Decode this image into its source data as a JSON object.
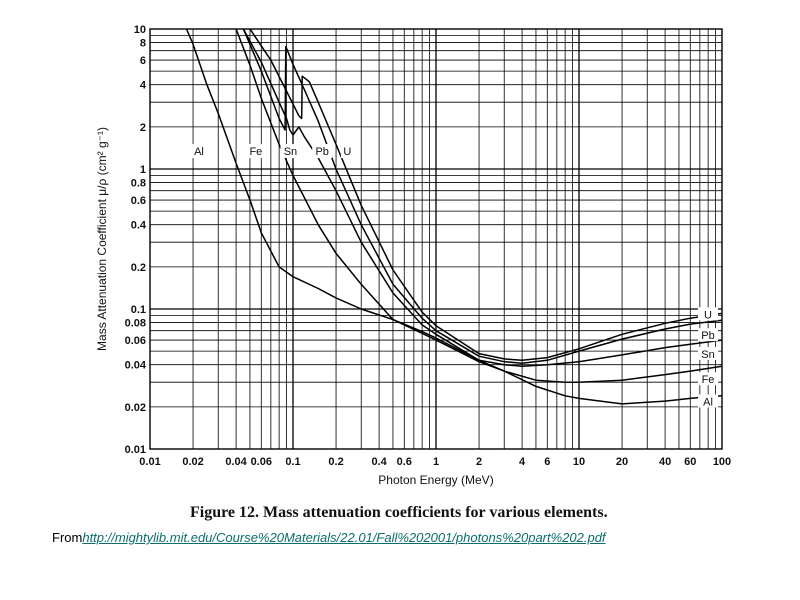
{
  "caption": "Figure 12.  Mass attenuation coefficients for various elements.",
  "source": {
    "prefix": "From",
    "url_text": "http://mightylib.mit.edu/Course%20Materials/22.01/Fall%202001/photons%20part%202.pdf"
  },
  "chart_data": {
    "type": "line",
    "xscale": "log",
    "yscale": "log",
    "xlim": [
      0.01,
      100
    ],
    "ylim": [
      0.01,
      10
    ],
    "xlabel": "Photon Energy (MeV)",
    "ylabel": "Mass Attenuation Coefficient μ/ρ (cm² g⁻¹)",
    "grid": true,
    "x_ticks": [
      {
        "v": 0.01,
        "label": "0.01"
      },
      {
        "v": 0.02,
        "label": "0.02"
      },
      {
        "v": 0.04,
        "label": "0.04"
      },
      {
        "v": 0.06,
        "label": "0.06"
      },
      {
        "v": 0.1,
        "label": "0.1"
      },
      {
        "v": 0.2,
        "label": "0.2"
      },
      {
        "v": 0.4,
        "label": "0.4"
      },
      {
        "v": 0.6,
        "label": "0.6"
      },
      {
        "v": 1,
        "label": "1"
      },
      {
        "v": 2,
        "label": "2"
      },
      {
        "v": 4,
        "label": "4"
      },
      {
        "v": 6,
        "label": "6"
      },
      {
        "v": 10,
        "label": "10"
      },
      {
        "v": 20,
        "label": "20"
      },
      {
        "v": 40,
        "label": "40"
      },
      {
        "v": 60,
        "label": "60"
      },
      {
        "v": 100,
        "label": "100"
      }
    ],
    "y_ticks": [
      {
        "v": 0.01,
        "label": "0.01"
      },
      {
        "v": 0.02,
        "label": "0.02"
      },
      {
        "v": 0.04,
        "label": "0.04"
      },
      {
        "v": 0.06,
        "label": "0.06"
      },
      {
        "v": 0.08,
        "label": "0.08"
      },
      {
        "v": 0.1,
        "label": "0.1"
      },
      {
        "v": 0.2,
        "label": "0.2"
      },
      {
        "v": 0.4,
        "label": "0.4"
      },
      {
        "v": 0.6,
        "label": "0.6"
      },
      {
        "v": 0.8,
        "label": "0.8"
      },
      {
        "v": 1,
        "label": "1"
      },
      {
        "v": 2,
        "label": "2"
      },
      {
        "v": 4,
        "label": "4"
      },
      {
        "v": 6,
        "label": "6"
      },
      {
        "v": 8,
        "label": "8"
      },
      {
        "v": 10,
        "label": "10"
      }
    ],
    "series": [
      {
        "name": "Al",
        "points": [
          [
            0.018,
            10
          ],
          [
            0.02,
            7.8
          ],
          [
            0.025,
            4.0
          ],
          [
            0.03,
            2.5
          ],
          [
            0.04,
            1.1
          ],
          [
            0.05,
            0.6
          ],
          [
            0.06,
            0.35
          ],
          [
            0.08,
            0.2
          ],
          [
            0.1,
            0.17
          ],
          [
            0.15,
            0.14
          ],
          [
            0.2,
            0.12
          ],
          [
            0.3,
            0.1
          ],
          [
            0.5,
            0.084
          ],
          [
            0.8,
            0.069
          ],
          [
            1,
            0.062
          ],
          [
            2,
            0.043
          ],
          [
            3,
            0.036
          ],
          [
            5,
            0.028
          ],
          [
            8,
            0.024
          ],
          [
            10,
            0.023
          ],
          [
            20,
            0.021
          ],
          [
            40,
            0.022
          ],
          [
            60,
            0.023
          ],
          [
            100,
            0.024
          ]
        ],
        "label_pos": [
          0.022,
          1.3
        ],
        "end_label_y": 0.0215
      },
      {
        "name": "Fe",
        "points": [
          [
            0.04,
            10
          ],
          [
            0.05,
            5.5
          ],
          [
            0.06,
            3.2
          ],
          [
            0.08,
            1.5
          ],
          [
            0.1,
            0.9
          ],
          [
            0.15,
            0.4
          ],
          [
            0.2,
            0.25
          ],
          [
            0.3,
            0.15
          ],
          [
            0.5,
            0.084
          ],
          [
            0.8,
            0.067
          ],
          [
            1,
            0.06
          ],
          [
            2,
            0.042
          ],
          [
            3,
            0.036
          ],
          [
            5,
            0.031
          ],
          [
            8,
            0.03
          ],
          [
            10,
            0.03
          ],
          [
            20,
            0.031
          ],
          [
            40,
            0.034
          ],
          [
            60,
            0.036
          ],
          [
            100,
            0.039
          ]
        ],
        "label_pos": [
          0.055,
          1.3
        ],
        "end_label_y": 0.031
      },
      {
        "name": "Sn",
        "points": [
          [
            0.045,
            10
          ],
          [
            0.06,
            5.8
          ],
          [
            0.08,
            3.0
          ],
          [
            0.09,
            2.3
          ],
          [
            0.095,
            1.9
          ],
          [
            0.1,
            1.75
          ],
          [
            0.11,
            2.0
          ],
          [
            0.12,
            1.7
          ],
          [
            0.15,
            1.2
          ],
          [
            0.2,
            0.7
          ],
          [
            0.3,
            0.3
          ],
          [
            0.5,
            0.13
          ],
          [
            0.8,
            0.077
          ],
          [
            1,
            0.066
          ],
          [
            2,
            0.043
          ],
          [
            3,
            0.04
          ],
          [
            4,
            0.039
          ],
          [
            6,
            0.04
          ],
          [
            10,
            0.042
          ],
          [
            20,
            0.047
          ],
          [
            40,
            0.053
          ],
          [
            60,
            0.056
          ],
          [
            100,
            0.06
          ]
        ],
        "label_pos": [
          0.096,
          1.3
        ],
        "end_label_y": 0.047
      },
      {
        "name": "Pb",
        "points": [
          [
            0.045,
            10
          ],
          [
            0.06,
            5.0
          ],
          [
            0.08,
            2.3
          ],
          [
            0.088,
            1.9
          ],
          [
            0.089,
            7.5
          ],
          [
            0.1,
            5.6
          ],
          [
            0.12,
            3.7
          ],
          [
            0.15,
            2.2
          ],
          [
            0.2,
            1.0
          ],
          [
            0.3,
            0.4
          ],
          [
            0.5,
            0.15
          ],
          [
            0.8,
            0.086
          ],
          [
            1,
            0.07
          ],
          [
            2,
            0.046
          ],
          [
            3,
            0.042
          ],
          [
            4,
            0.041
          ],
          [
            6,
            0.043
          ],
          [
            10,
            0.05
          ],
          [
            20,
            0.061
          ],
          [
            40,
            0.072
          ],
          [
            60,
            0.078
          ],
          [
            100,
            0.083
          ]
        ],
        "label_pos": [
          0.16,
          1.3
        ],
        "end_label_y": 0.064
      },
      {
        "name": "U",
        "points": [
          [
            0.05,
            10
          ],
          [
            0.07,
            6.0
          ],
          [
            0.09,
            3.6
          ],
          [
            0.11,
            2.4
          ],
          [
            0.115,
            2.3
          ],
          [
            0.116,
            4.6
          ],
          [
            0.13,
            4.2
          ],
          [
            0.15,
            3.0
          ],
          [
            0.2,
            1.5
          ],
          [
            0.3,
            0.55
          ],
          [
            0.5,
            0.19
          ],
          [
            0.8,
            0.095
          ],
          [
            1,
            0.076
          ],
          [
            2,
            0.048
          ],
          [
            3,
            0.044
          ],
          [
            4,
            0.043
          ],
          [
            6,
            0.045
          ],
          [
            10,
            0.052
          ],
          [
            20,
            0.066
          ],
          [
            40,
            0.079
          ],
          [
            60,
            0.086
          ],
          [
            100,
            0.093
          ]
        ],
        "label_pos": [
          0.24,
          1.3
        ],
        "end_label_y": 0.09
      }
    ]
  }
}
